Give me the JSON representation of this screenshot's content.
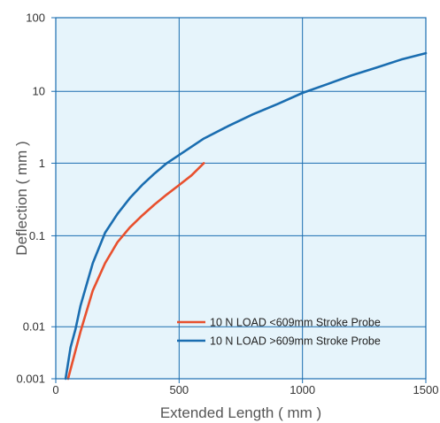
{
  "chart_data": {
    "type": "line",
    "xlabel": "Extended Length ( mm )",
    "ylabel": "Deflection ( mm )",
    "xlim": [
      0,
      1500
    ],
    "x_ticks": [
      "0",
      "500",
      "1000",
      "1500"
    ],
    "y_ticks": [
      "0.001",
      "0.01",
      "0.1",
      "1",
      "10",
      "100"
    ],
    "y_scale": "log",
    "grid": true,
    "legend_position": "bottom-right",
    "colors": {
      "plot_background": "#e6f4fb",
      "grid": "#1a6db0",
      "axis": "#1a6db0"
    },
    "series": [
      {
        "name": "10 N LOAD <609mm Stroke Probe",
        "color": "#e8502e",
        "x": [
          50,
          100,
          150,
          200,
          250,
          300,
          350,
          400,
          450,
          500,
          550,
          600
        ],
        "y": [
          0.001,
          0.008,
          0.025,
          0.05,
          0.085,
          0.13,
          0.19,
          0.27,
          0.37,
          0.5,
          0.68,
          1.0
        ]
      },
      {
        "name": "10 N LOAD >609mm Stroke Probe",
        "color": "#1a6db0",
        "x": [
          40,
          60,
          80,
          100,
          150,
          200,
          250,
          300,
          350,
          400,
          450,
          500,
          600,
          700,
          800,
          900,
          1000,
          1100,
          1200,
          1300,
          1400,
          1500
        ],
        "y": [
          0.001,
          0.004,
          0.009,
          0.017,
          0.05,
          0.11,
          0.2,
          0.33,
          0.5,
          0.72,
          1.0,
          1.3,
          2.2,
          3.3,
          4.8,
          6.7,
          9.5,
          12.5,
          16.5,
          21,
          27,
          33
        ]
      }
    ]
  }
}
